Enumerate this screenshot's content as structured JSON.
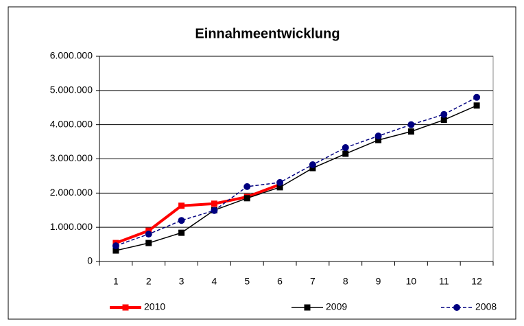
{
  "chart_data": {
    "type": "line",
    "title": "Einnahmeentwicklung",
    "categories": [
      "1",
      "2",
      "3",
      "4",
      "5",
      "6",
      "7",
      "8",
      "9",
      "10",
      "11",
      "12"
    ],
    "series": [
      {
        "name": "2010",
        "color": "#ff0000",
        "width": 4,
        "dash": false,
        "marker": "square",
        "values": [
          540000,
          900000,
          1630000,
          1690000,
          1890000,
          2250000,
          null,
          null,
          null,
          null,
          null,
          null
        ]
      },
      {
        "name": "2009",
        "color": "#000000",
        "width": 1.5,
        "dash": false,
        "marker": "square",
        "values": [
          320000,
          540000,
          840000,
          1500000,
          1850000,
          2170000,
          2730000,
          3150000,
          3550000,
          3800000,
          4140000,
          4560000
        ]
      },
      {
        "name": "2008",
        "color": "#000080",
        "width": 1.5,
        "dash": true,
        "marker": "circle",
        "values": [
          460000,
          800000,
          1200000,
          1490000,
          2190000,
          2310000,
          2830000,
          3330000,
          3670000,
          4000000,
          4300000,
          4800000
        ]
      }
    ],
    "ylim": [
      0,
      6000000
    ],
    "yticks": [
      0,
      {
        "value": 1000000,
        "label": "1.000.000"
      },
      {
        "value": 2000000,
        "label": "2.000.000"
      },
      {
        "value": 3000000,
        "label": "3.000.000"
      },
      {
        "value": 4000000,
        "label": "4.000.000"
      },
      {
        "value": 5000000,
        "label": "5.000.000"
      },
      {
        "value": 6000000,
        "label": "6.000.000"
      }
    ],
    "grid": true,
    "legend": "bottom"
  }
}
